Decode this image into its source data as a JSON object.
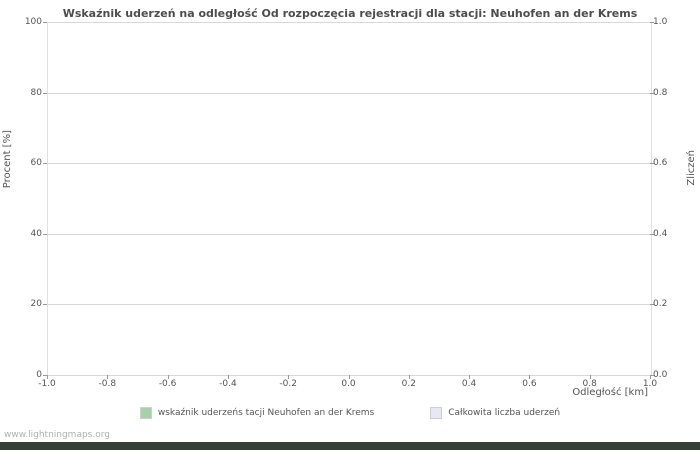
{
  "watermark": "www.lightningmaps.org",
  "chart_data": {
    "type": "line",
    "title": "Wskaźnik uderzeń na odległość Od rozpoczęcia rejestracji dla stacji: Neuhofen an der Krems",
    "xlabel": "Odległość   [km]",
    "ylabel_left": "Procent  [%]",
    "ylabel_right": "Zliczeń",
    "xlim": [
      -1.0,
      1.0
    ],
    "ylim_left": [
      0,
      100
    ],
    "ylim_right": [
      0.0,
      1.0
    ],
    "grid": "horizontal",
    "legend_position": "bottom",
    "x_tick_labels": [
      "-1.0",
      "-0.8",
      "-0.6",
      "-0.4",
      "-0.2",
      "0.0",
      "0.2",
      "0.4",
      "0.6",
      "0.8",
      "1.0"
    ],
    "y_left_tick_labels": [
      "0",
      "20",
      "40",
      "60",
      "80",
      "100"
    ],
    "y_right_tick_labels": [
      "0.0",
      "0.2",
      "0.4",
      "0.6",
      "0.8",
      "1.0"
    ],
    "series": [],
    "legend": [
      {
        "label": "wskaźnik uderzeńs tacji Neuhofen an der Krems",
        "color": "#a7d1a7"
      },
      {
        "label": "Całkowita liczba uderzeń",
        "color": "#e7e7f7"
      }
    ]
  }
}
